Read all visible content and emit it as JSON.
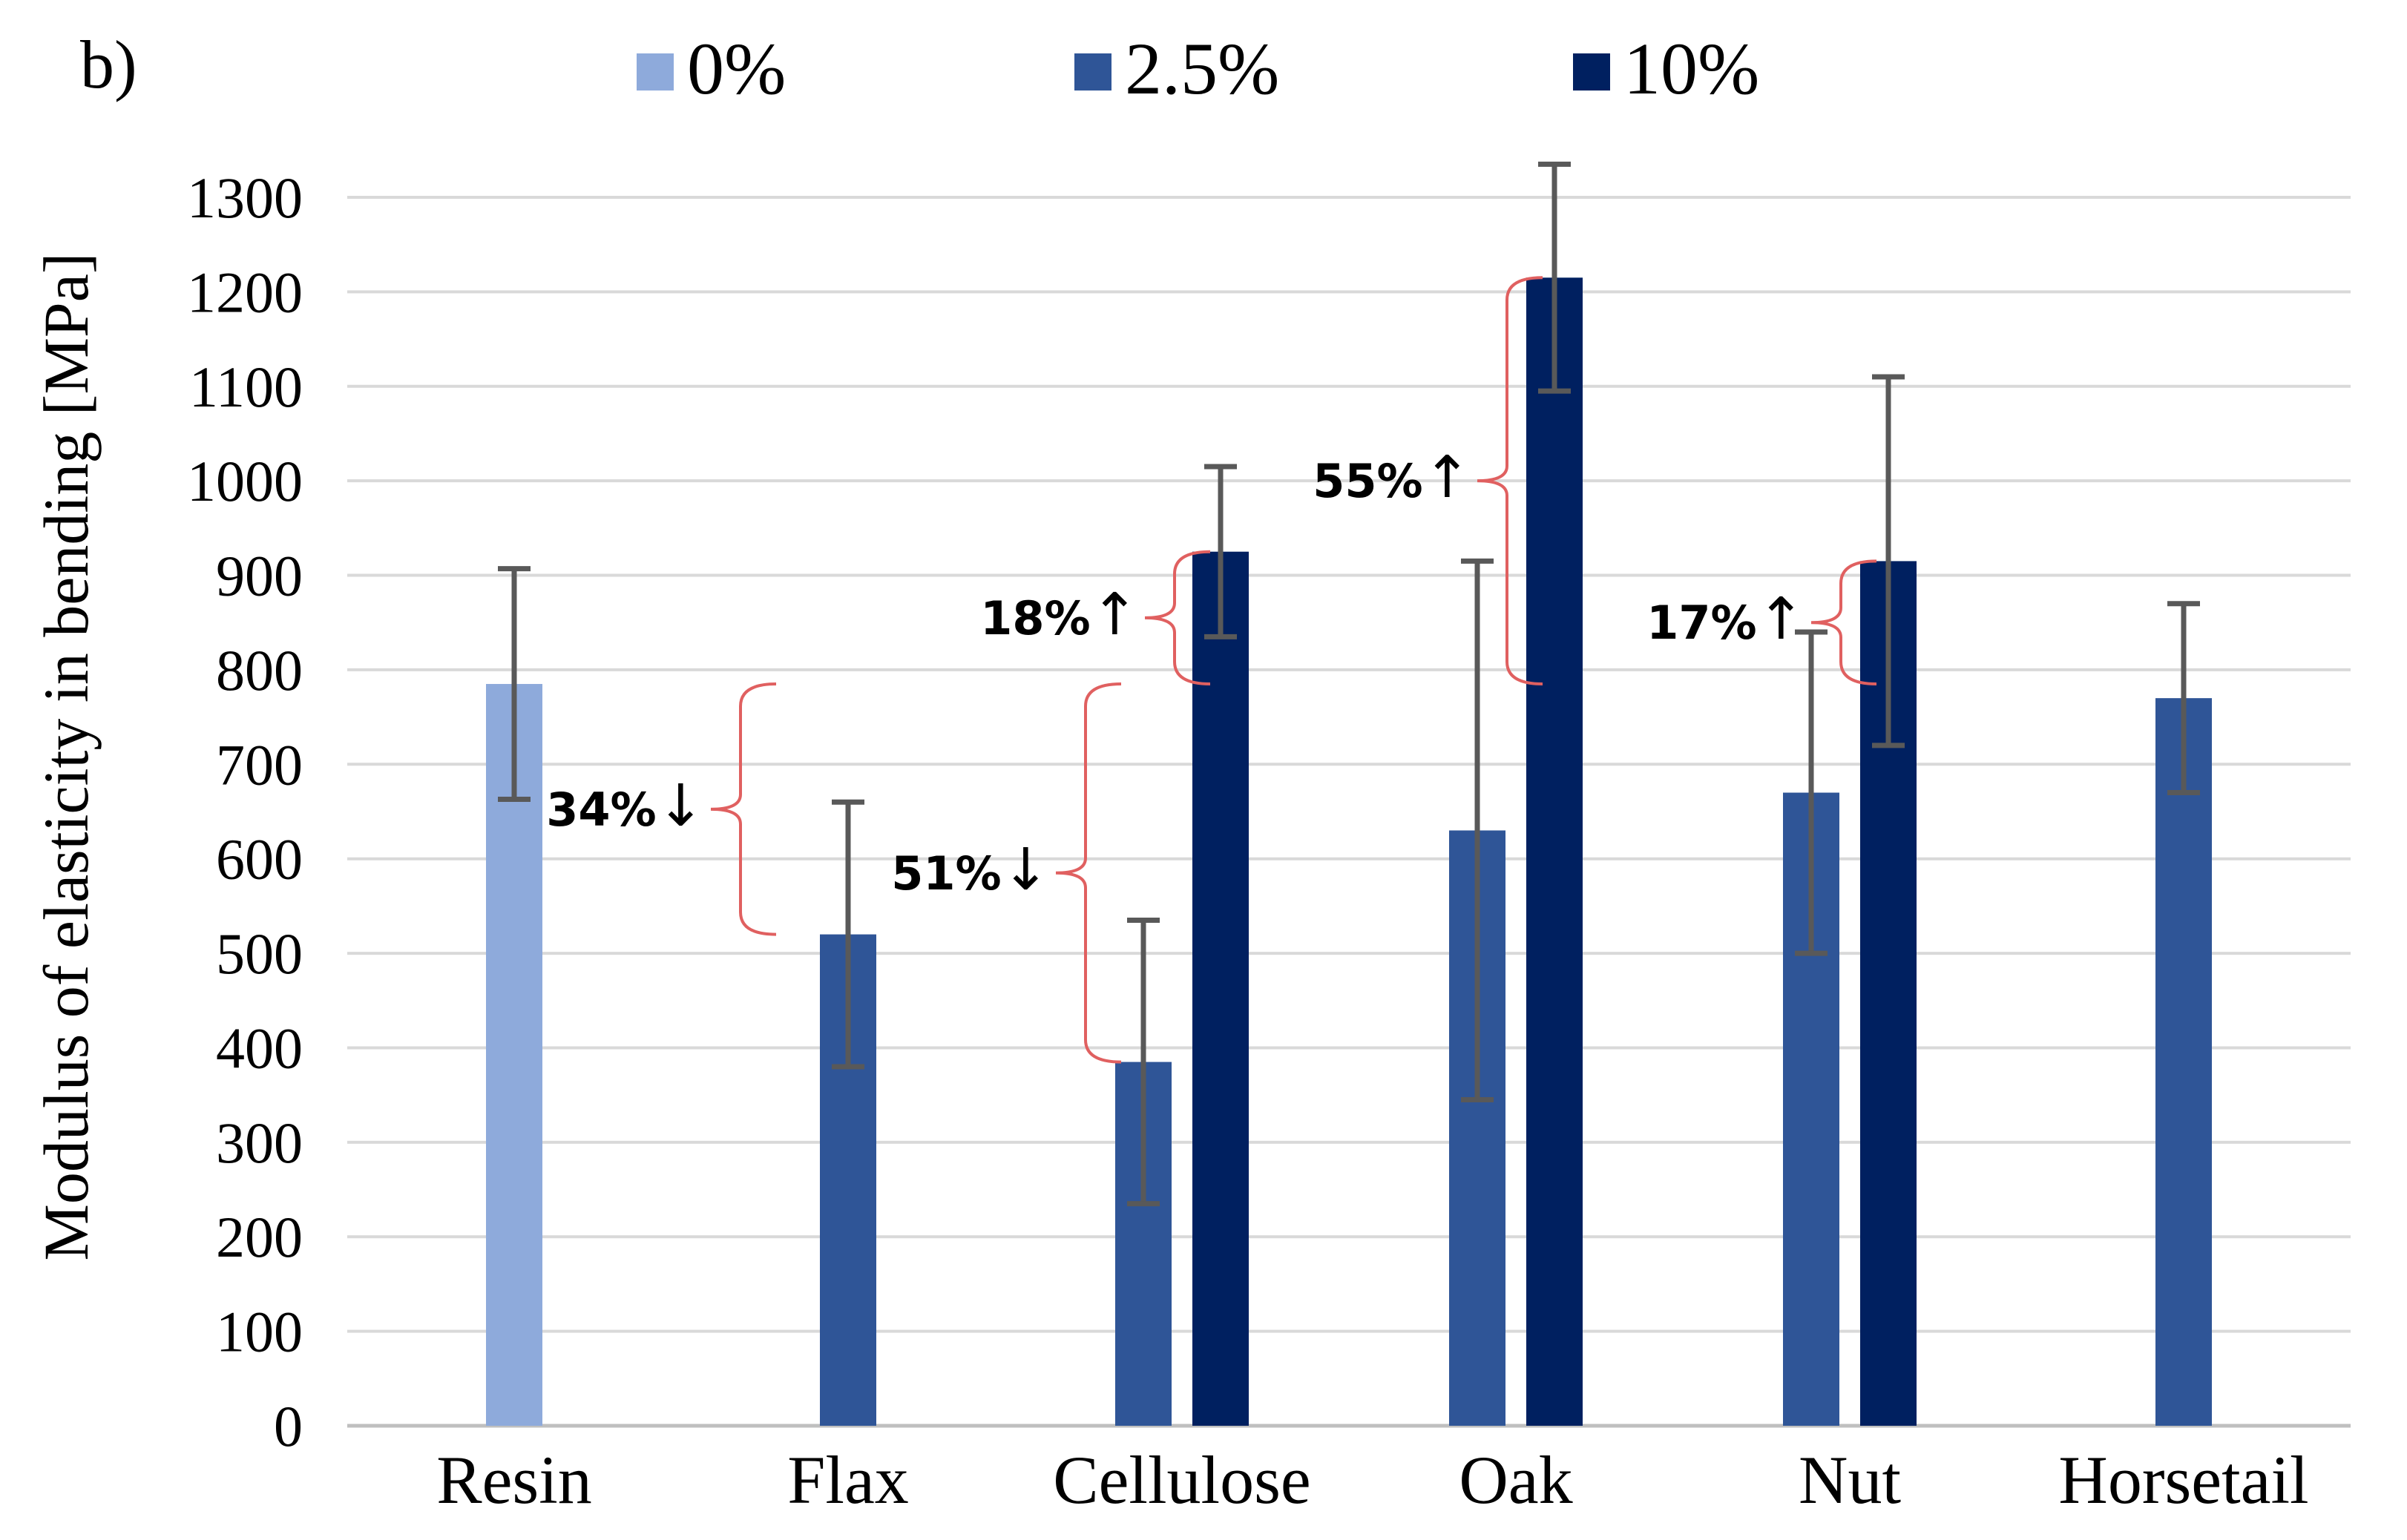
{
  "chart_data": {
    "type": "bar",
    "panel_label": "b)",
    "ylabel": "Modulus of elasticity in bending [MPa]",
    "xlabel": "",
    "ylim": [
      0,
      1300
    ],
    "yticks": [
      0,
      100,
      200,
      300,
      400,
      500,
      600,
      700,
      800,
      900,
      1000,
      1100,
      1200,
      1300
    ],
    "grid": true,
    "legend_position": "top",
    "categories": [
      "Resin",
      "Flax",
      "Cellulose",
      "Oak",
      "Nut",
      "Horsetail"
    ],
    "series": [
      {
        "name": "0%",
        "color": "#8eaadb",
        "values": [
          785,
          null,
          null,
          null,
          null,
          null
        ],
        "errors": [
          122,
          null,
          null,
          null,
          null,
          null
        ]
      },
      {
        "name": "2.5%",
        "color": "#2f5597",
        "values": [
          null,
          520,
          385,
          630,
          670,
          770
        ],
        "errors": [
          null,
          140,
          150,
          285,
          170,
          100
        ]
      },
      {
        "name": "10%",
        "color": "#002060",
        "values": [
          null,
          null,
          925,
          1215,
          915,
          null
        ],
        "errors": [
          null,
          null,
          90,
          120,
          195,
          null
        ]
      }
    ],
    "annotations": [
      {
        "text": "34%",
        "arrow": "↓",
        "category": "Flax",
        "from": 785,
        "to": 520
      },
      {
        "text": "51%",
        "arrow": "↓",
        "category": "Cellulose",
        "from": 785,
        "to": 385
      },
      {
        "text": "18%",
        "arrow": "↑",
        "category": "Cellulose",
        "from": 925,
        "to": 785
      },
      {
        "text": "55%",
        "arrow": "↑",
        "category": "Oak",
        "from": 1215,
        "to": 785
      },
      {
        "text": "17%",
        "arrow": "↑",
        "category": "Nut",
        "from": 915,
        "to": 785
      }
    ],
    "colors": {
      "grid": "#d9d9d9",
      "axis": "#bfbfbf",
      "error_bar": "#595959",
      "brace": "#e06060",
      "text": "#000000"
    }
  }
}
